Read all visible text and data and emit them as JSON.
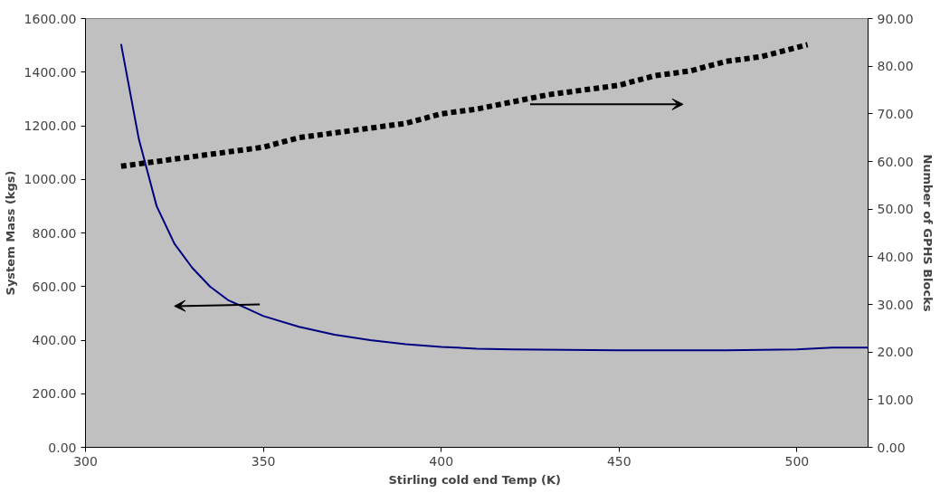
{
  "chart_data": {
    "type": "line",
    "xlabel": "Stirling cold end Temp  (K)",
    "ylabel": "System Mass (kgs)",
    "y2label": "Number of GPHS Blocks",
    "xlim": [
      300,
      520
    ],
    "xticks": [
      300,
      350,
      400,
      450,
      500
    ],
    "ylim": [
      0,
      1600
    ],
    "yticks": [
      {
        "value": 0,
        "label": "0.00"
      },
      {
        "value": 200,
        "label": "200.00"
      },
      {
        "value": 400,
        "label": "400.00"
      },
      {
        "value": 600,
        "label": "600.00"
      },
      {
        "value": 800,
        "label": "800.00"
      },
      {
        "value": 1000,
        "label": "1000.00"
      },
      {
        "value": 1200,
        "label": "1200.00"
      },
      {
        "value": 1400,
        "label": "1400.00"
      },
      {
        "value": 1600,
        "label": "1600.00"
      }
    ],
    "y2lim": [
      0,
      90
    ],
    "y2ticks": [
      {
        "value": 0,
        "label": "0.00"
      },
      {
        "value": 10,
        "label": "10.00"
      },
      {
        "value": 20,
        "label": "20.00"
      },
      {
        "value": 30,
        "label": "30.00"
      },
      {
        "value": 40,
        "label": "40.00"
      },
      {
        "value": 50,
        "label": "50.00"
      },
      {
        "value": 60,
        "label": "60.00"
      },
      {
        "value": 70,
        "label": "70.00"
      },
      {
        "value": 80,
        "label": "80.00"
      },
      {
        "value": 90,
        "label": "90.00"
      }
    ],
    "grid": false,
    "series": [
      {
        "color": "#000080",
        "line_style": "solid",
        "x": [
          310,
          315,
          320,
          325,
          330,
          335,
          340,
          345,
          350,
          360,
          370,
          380,
          390,
          400,
          410,
          420,
          450,
          480,
          500,
          510,
          520
        ],
        "values": [
          1505,
          1150,
          900,
          760,
          670,
          600,
          550,
          520,
          490,
          450,
          420,
          400,
          385,
          375,
          368,
          365,
          362,
          362,
          365,
          372,
          372
        ]
      },
      {
        "color": "#000000",
        "line_style": "dashed",
        "axis": "y2",
        "x": [
          310,
          320,
          330,
          340,
          350,
          360,
          370,
          380,
          390,
          400,
          410,
          420,
          430,
          440,
          450,
          460,
          470,
          480,
          490,
          503
        ],
        "values": [
          59,
          60,
          61,
          62,
          63,
          65,
          66,
          67,
          68,
          70,
          71,
          72.5,
          74,
          75,
          76,
          78,
          79,
          81,
          82,
          84.5
        ]
      }
    ]
  }
}
